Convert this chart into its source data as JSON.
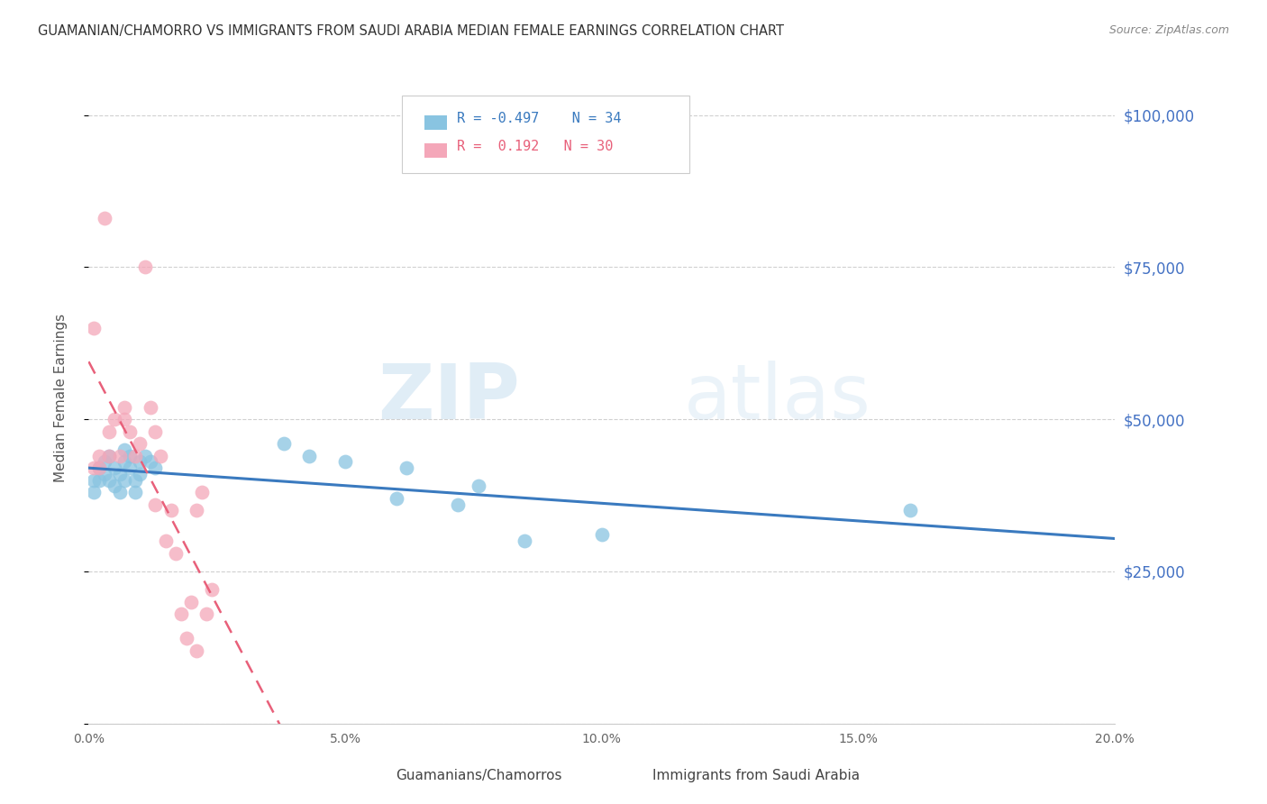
{
  "title": "GUAMANIAN/CHAMORRO VS IMMIGRANTS FROM SAUDI ARABIA MEDIAN FEMALE EARNINGS CORRELATION CHART",
  "source": "Source: ZipAtlas.com",
  "ylabel": "Median Female Earnings",
  "y_ticks": [
    0,
    25000,
    50000,
    75000,
    100000
  ],
  "y_tick_labels": [
    "",
    "$25,000",
    "$50,000",
    "$75,000",
    "$100,000"
  ],
  "x_min": 0.0,
  "x_max": 0.2,
  "y_min": 0,
  "y_max": 107000,
  "blue_R": "-0.497",
  "blue_N": "34",
  "pink_R": "0.192",
  "pink_N": "30",
  "blue_color": "#89c4e1",
  "pink_color": "#f4a7b9",
  "blue_line_color": "#3a7abf",
  "pink_line_color": "#e8607a",
  "watermark_zip": "ZIP",
  "watermark_atlas": "atlas",
  "legend_label_blue": "Guamanians/Chamorros",
  "legend_label_pink": "Immigrants from Saudi Arabia",
  "blue_scatter_x": [
    0.001,
    0.001,
    0.002,
    0.002,
    0.003,
    0.003,
    0.004,
    0.004,
    0.005,
    0.005,
    0.006,
    0.006,
    0.007,
    0.007,
    0.007,
    0.008,
    0.008,
    0.009,
    0.009,
    0.01,
    0.01,
    0.011,
    0.012,
    0.013,
    0.038,
    0.043,
    0.05,
    0.06,
    0.062,
    0.072,
    0.076,
    0.085,
    0.1,
    0.16
  ],
  "blue_scatter_y": [
    40000,
    38000,
    42000,
    40000,
    43000,
    41000,
    44000,
    40000,
    42000,
    39000,
    38000,
    41000,
    43000,
    45000,
    40000,
    44000,
    42000,
    40000,
    38000,
    43000,
    41000,
    44000,
    43000,
    42000,
    46000,
    44000,
    43000,
    37000,
    42000,
    36000,
    39000,
    30000,
    31000,
    35000
  ],
  "pink_scatter_x": [
    0.001,
    0.001,
    0.002,
    0.002,
    0.003,
    0.004,
    0.004,
    0.005,
    0.006,
    0.007,
    0.007,
    0.008,
    0.009,
    0.01,
    0.011,
    0.012,
    0.013,
    0.013,
    0.014,
    0.015,
    0.016,
    0.017,
    0.018,
    0.019,
    0.02,
    0.021,
    0.021,
    0.022,
    0.023,
    0.024
  ],
  "pink_scatter_y": [
    42000,
    65000,
    44000,
    42000,
    83000,
    48000,
    44000,
    50000,
    44000,
    52000,
    50000,
    48000,
    44000,
    46000,
    75000,
    52000,
    48000,
    36000,
    44000,
    30000,
    35000,
    28000,
    18000,
    14000,
    20000,
    35000,
    12000,
    38000,
    18000,
    22000
  ],
  "background_color": "#ffffff",
  "grid_color": "#d0d0d0",
  "title_color": "#333333",
  "right_axis_color": "#4472c4"
}
